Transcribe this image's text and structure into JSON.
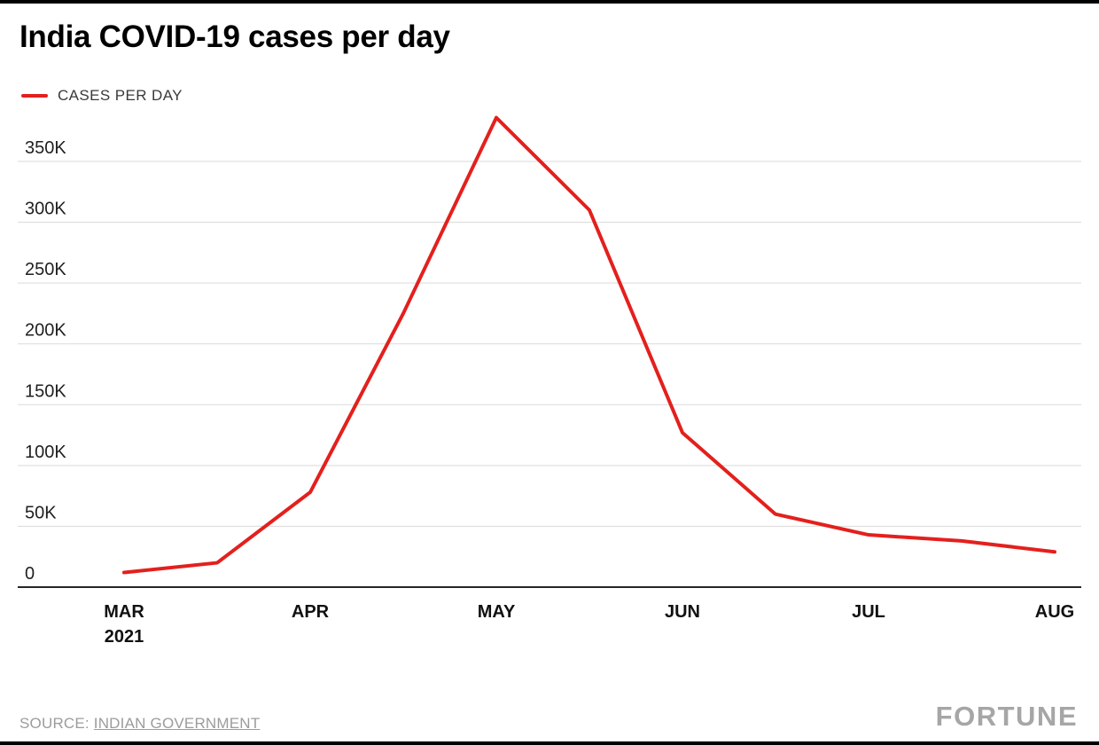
{
  "header": {
    "title": "India COVID-19 cases per day"
  },
  "legend": {
    "label": "CASES PER DAY",
    "color": "#e3201d"
  },
  "chart_data": {
    "type": "line",
    "title": "India COVID-19 cases per day",
    "xlabel": "",
    "ylabel": "",
    "grid": "horizontal",
    "legend_position": "top-left",
    "x_tick_labels": [
      "MAR",
      "APR",
      "MAY",
      "JUN",
      "JUL",
      "AUG"
    ],
    "x_tick_year": "2021",
    "y_ticks": [
      0,
      50000,
      100000,
      150000,
      200000,
      250000,
      300000,
      350000
    ],
    "y_tick_labels": [
      "0",
      "50K",
      "100K",
      "150K",
      "200K",
      "250K",
      "300K",
      "350K"
    ],
    "ylim": [
      0,
      400000
    ],
    "series": [
      {
        "name": "CASES PER DAY",
        "color": "#e3201d",
        "points": [
          {
            "date": "MAR 1 2021",
            "x": 0,
            "value": 12000
          },
          {
            "date": "MAR 15 2021",
            "x": 0.5,
            "value": 20000
          },
          {
            "date": "APR 1 2021",
            "x": 1,
            "value": 78000
          },
          {
            "date": "APR 15 2021",
            "x": 1.5,
            "value": 225000
          },
          {
            "date": "MAY 1 2021",
            "x": 2,
            "value": 386000
          },
          {
            "date": "MAY 15 2021",
            "x": 2.5,
            "value": 310000
          },
          {
            "date": "JUN 1 2021",
            "x": 3,
            "value": 127000
          },
          {
            "date": "JUN 15 2021",
            "x": 3.5,
            "value": 60000
          },
          {
            "date": "JUL 1 2021",
            "x": 4,
            "value": 43000
          },
          {
            "date": "JUL 15 2021",
            "x": 4.5,
            "value": 38000
          },
          {
            "date": "AUG 1 2021",
            "x": 5,
            "value": 29000
          }
        ]
      }
    ]
  },
  "footer": {
    "source_prefix": "SOURCE: ",
    "source_link": "INDIAN GOVERNMENT",
    "brand": "FORTUNE"
  }
}
